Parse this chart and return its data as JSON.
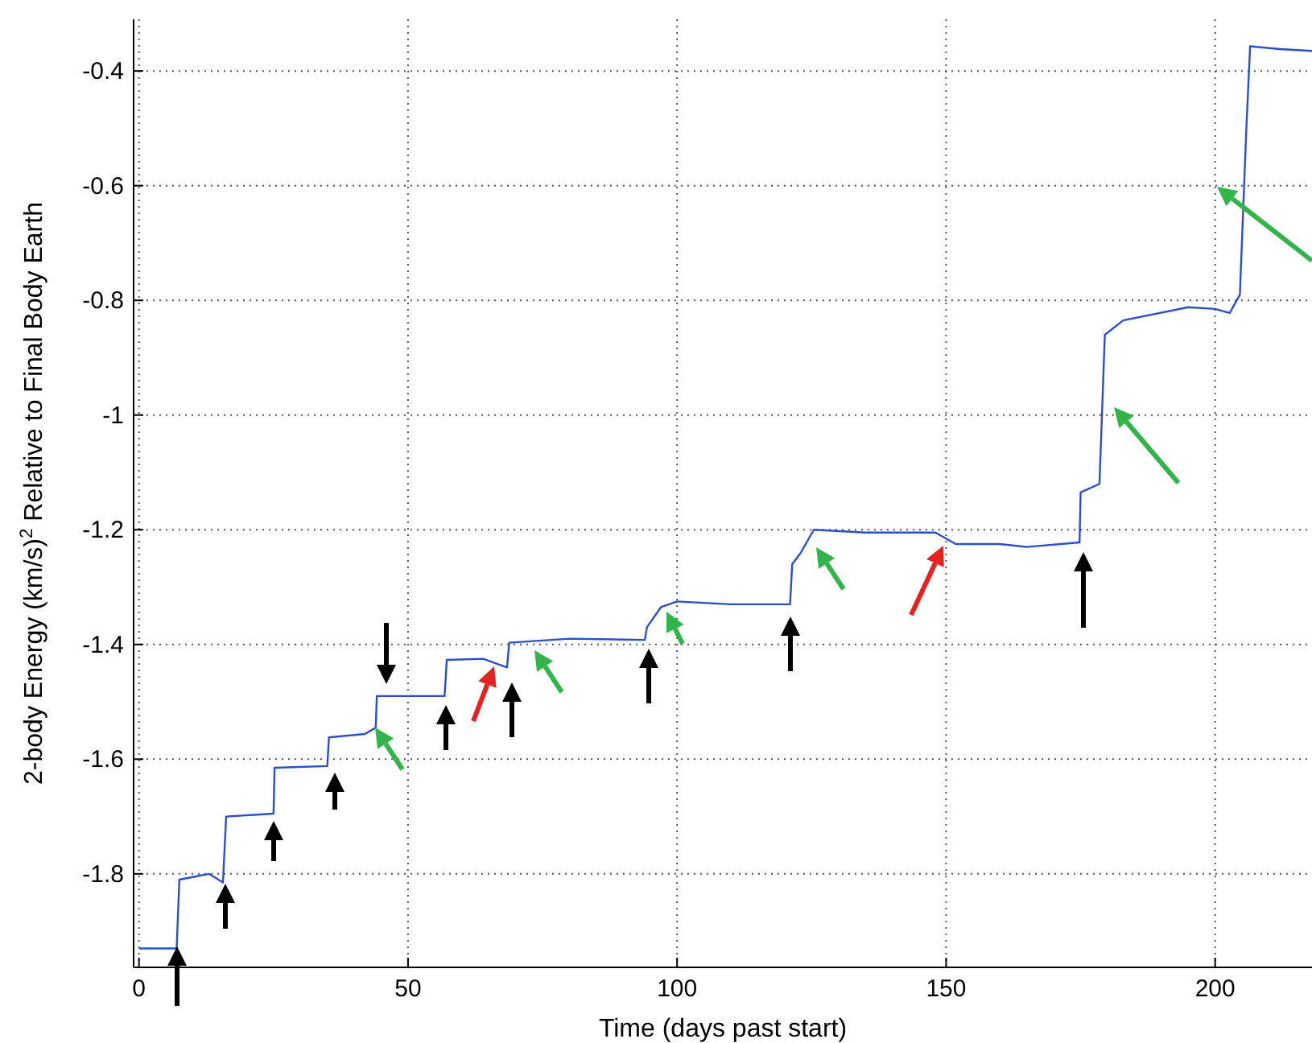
{
  "chart_data": {
    "type": "line",
    "xlabel": "Time (days past start)",
    "ylabel": "2-body Energy (km/s)$^{2}$ Relative to Final Body Earth",
    "xlim": [
      -1,
      218
    ],
    "ylim": [
      -1.963,
      -0.31
    ],
    "xticks": [
      0,
      50,
      100,
      150,
      200
    ],
    "yticks": [
      -1.8,
      -1.6,
      -1.4,
      -1.2,
      -1,
      -0.8,
      -0.6,
      -0.4
    ],
    "grid": true,
    "series": [
      {
        "color": "#2b4fc8",
        "x": [
          0,
          7,
          7.5,
          13,
          15.6,
          16.2,
          25,
          25.2,
          35,
          35.3,
          42,
          44,
          44.2,
          56.8,
          57.2,
          64,
          68.4,
          68.8,
          80,
          94,
          94.4,
          97,
          100,
          110,
          121,
          121.4,
          123,
          125.4,
          135,
          148,
          151.8,
          160,
          165,
          174.8,
          175,
          178.5,
          179.5,
          182.9,
          195,
          200,
          202.7,
          204.6,
          205.8,
          206.5,
          212,
          218
        ],
        "values": [
          -1.93,
          -1.93,
          -1.81,
          -1.8,
          -1.815,
          -1.7,
          -1.695,
          -1.615,
          -1.612,
          -1.562,
          -1.556,
          -1.545,
          -1.49,
          -1.49,
          -1.427,
          -1.425,
          -1.44,
          -1.397,
          -1.39,
          -1.392,
          -1.37,
          -1.335,
          -1.325,
          -1.33,
          -1.33,
          -1.26,
          -1.24,
          -1.2,
          -1.205,
          -1.205,
          -1.225,
          -1.225,
          -1.23,
          -1.222,
          -1.135,
          -1.12,
          -0.86,
          -0.835,
          -0.812,
          -0.815,
          -0.822,
          -0.79,
          -0.5,
          -0.357,
          -0.362,
          -0.365
        ]
      }
    ]
  }
}
